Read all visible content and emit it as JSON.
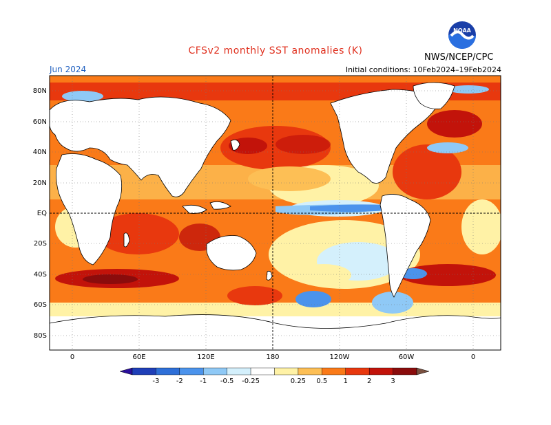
{
  "header": {
    "title": "CFSv2 monthly SST anomalies (K)",
    "month": "Jun 2024",
    "initial_conditions": "Initial conditions: 10Feb2024–19Feb2024",
    "org": "NWS/NCEP/CPC",
    "logo_text": "NOAA"
  },
  "map": {
    "lat_labels": [
      "80N",
      "60N",
      "40N",
      "20N",
      "EQ",
      "20S",
      "40S",
      "60S",
      "80S"
    ],
    "lon_labels": [
      "0",
      "60E",
      "120E",
      "180",
      "120W",
      "60W",
      "0"
    ],
    "grid": "dotted",
    "reference_lines": [
      "EQ",
      "180"
    ]
  },
  "colorbar": {
    "ticks": [
      "-3",
      "-2",
      "-1",
      "-0.5",
      "-0.25",
      "0.25",
      "0.5",
      "1",
      "2",
      "3"
    ],
    "colors": [
      "#2a0f9c",
      "#1f3fb8",
      "#2e6fd8",
      "#4b93ec",
      "#8fc9f6",
      "#d4f0fc",
      "#ffffff",
      "#fff2a6",
      "#fdbf55",
      "#fa7a18",
      "#e8380e",
      "#c2130a",
      "#8a0c0c",
      "#7a5040"
    ]
  },
  "field_palette": {
    "land": "#ffffff",
    "neutral": "#ffffff",
    "warm_light": "#fff2a6",
    "warm": "#fdbf55",
    "warmer": "#fa7a18",
    "hot": "#e8380e",
    "hotter": "#c2130a",
    "extreme": "#8a0c0c",
    "cool_light": "#d4f0fc",
    "cool": "#8fc9f6",
    "cooler": "#4b93ec"
  }
}
